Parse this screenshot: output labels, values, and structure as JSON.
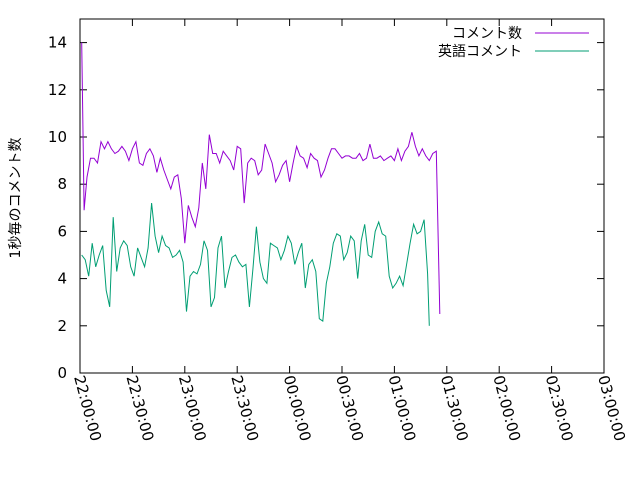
{
  "chart_data": {
    "type": "line",
    "title": "",
    "xlabel": "",
    "ylabel": "1秒毎のコメント数",
    "xlim": [
      "22:00:00",
      "03:00:00"
    ],
    "ylim": [
      0,
      15
    ],
    "x_ticks": [
      "22:00:00",
      "22:30:00",
      "23:00:00",
      "23:30:00",
      "00:00:00",
      "00:30:00",
      "01:00:00",
      "01:30:00",
      "02:00:00",
      "02:30:00",
      "03:00:00"
    ],
    "y_ticks": [
      "0",
      "2",
      "4",
      "6",
      "8",
      "10",
      "12",
      "14"
    ],
    "legend_position": "top-right",
    "grid": false,
    "series": [
      {
        "name": "コメント数",
        "color": "#9400d3",
        "points": [
          [
            "22:01:00",
            14.0
          ],
          [
            "22:01:40",
            10.5
          ],
          [
            "22:02:20",
            6.9
          ],
          [
            "22:04:00",
            8.3
          ],
          [
            "22:06:00",
            9.1
          ],
          [
            "22:08:00",
            9.1
          ],
          [
            "22:10:00",
            8.9
          ],
          [
            "22:12:00",
            9.8
          ],
          [
            "22:14:00",
            9.5
          ],
          [
            "22:16:00",
            9.8
          ],
          [
            "22:18:00",
            9.5
          ],
          [
            "22:20:00",
            9.3
          ],
          [
            "22:22:00",
            9.4
          ],
          [
            "22:24:00",
            9.6
          ],
          [
            "22:26:00",
            9.4
          ],
          [
            "22:28:00",
            9.0
          ],
          [
            "22:30:00",
            9.5
          ],
          [
            "22:32:00",
            9.8
          ],
          [
            "22:34:00",
            8.9
          ],
          [
            "22:36:00",
            8.8
          ],
          [
            "22:38:00",
            9.3
          ],
          [
            "22:40:00",
            9.5
          ],
          [
            "22:42:00",
            9.2
          ],
          [
            "22:44:00",
            8.5
          ],
          [
            "22:46:00",
            9.1
          ],
          [
            "22:48:00",
            8.6
          ],
          [
            "22:50:00",
            8.2
          ],
          [
            "22:52:00",
            7.8
          ],
          [
            "22:54:00",
            8.3
          ],
          [
            "22:56:00",
            8.4
          ],
          [
            "22:58:00",
            7.4
          ],
          [
            "23:00:00",
            5.5
          ],
          [
            "23:02:00",
            7.1
          ],
          [
            "23:04:00",
            6.6
          ],
          [
            "23:06:00",
            6.2
          ],
          [
            "23:08:00",
            7.0
          ],
          [
            "23:10:00",
            8.9
          ],
          [
            "23:12:00",
            7.8
          ],
          [
            "23:14:00",
            10.1
          ],
          [
            "23:16:00",
            9.3
          ],
          [
            "23:18:00",
            9.3
          ],
          [
            "23:20:00",
            8.9
          ],
          [
            "23:22:00",
            9.4
          ],
          [
            "23:24:00",
            9.2
          ],
          [
            "23:26:00",
            9.0
          ],
          [
            "23:28:00",
            8.6
          ],
          [
            "23:30:00",
            9.6
          ],
          [
            "23:32:00",
            9.5
          ],
          [
            "23:34:00",
            7.2
          ],
          [
            "23:36:00",
            8.9
          ],
          [
            "23:38:00",
            9.1
          ],
          [
            "23:40:00",
            9.0
          ],
          [
            "23:42:00",
            8.4
          ],
          [
            "23:44:00",
            8.6
          ],
          [
            "23:46:00",
            9.7
          ],
          [
            "23:48:00",
            9.3
          ],
          [
            "23:50:00",
            8.9
          ],
          [
            "23:52:00",
            8.1
          ],
          [
            "23:54:00",
            8.4
          ],
          [
            "23:56:00",
            8.8
          ],
          [
            "23:58:00",
            9.0
          ],
          [
            "00:00:00",
            8.1
          ],
          [
            "00:02:00",
            8.9
          ],
          [
            "00:04:00",
            9.6
          ],
          [
            "00:06:00",
            9.2
          ],
          [
            "00:08:00",
            9.1
          ],
          [
            "00:10:00",
            8.7
          ],
          [
            "00:12:00",
            9.3
          ],
          [
            "00:14:00",
            9.1
          ],
          [
            "00:16:00",
            9.0
          ],
          [
            "00:18:00",
            8.3
          ],
          [
            "00:20:00",
            8.6
          ],
          [
            "00:22:00",
            9.1
          ],
          [
            "00:24:00",
            9.5
          ],
          [
            "00:26:00",
            9.5
          ],
          [
            "00:28:00",
            9.3
          ],
          [
            "00:30:00",
            9.1
          ],
          [
            "00:32:00",
            9.2
          ],
          [
            "00:34:00",
            9.2
          ],
          [
            "00:36:00",
            9.1
          ],
          [
            "00:38:00",
            9.1
          ],
          [
            "00:40:00",
            9.3
          ],
          [
            "00:42:00",
            9.0
          ],
          [
            "00:44:00",
            9.1
          ],
          [
            "00:46:00",
            9.7
          ],
          [
            "00:48:00",
            9.1
          ],
          [
            "00:50:00",
            9.1
          ],
          [
            "00:52:00",
            9.2
          ],
          [
            "00:54:00",
            9.0
          ],
          [
            "00:56:00",
            9.1
          ],
          [
            "00:58:00",
            9.2
          ],
          [
            "01:00:00",
            9.0
          ],
          [
            "01:02:00",
            9.5
          ],
          [
            "01:04:00",
            9.0
          ],
          [
            "01:06:00",
            9.4
          ],
          [
            "01:08:00",
            9.6
          ],
          [
            "01:10:00",
            10.2
          ],
          [
            "01:12:00",
            9.6
          ],
          [
            "01:14:00",
            9.2
          ],
          [
            "01:16:00",
            9.5
          ],
          [
            "01:18:00",
            9.2
          ],
          [
            "01:20:00",
            9.0
          ],
          [
            "01:22:00",
            9.3
          ],
          [
            "01:24:00",
            9.4
          ],
          [
            "01:26:00",
            2.5
          ]
        ]
      },
      {
        "name": "英語コメント",
        "color": "#009e73",
        "points": [
          [
            "22:01:00",
            5.0
          ],
          [
            "22:02:00",
            4.9
          ],
          [
            "22:03:00",
            4.8
          ],
          [
            "22:05:00",
            4.1
          ],
          [
            "22:07:00",
            5.5
          ],
          [
            "22:09:00",
            4.5
          ],
          [
            "22:11:00",
            5.0
          ],
          [
            "22:13:00",
            5.4
          ],
          [
            "22:15:00",
            3.5
          ],
          [
            "22:17:00",
            2.8
          ],
          [
            "22:19:00",
            6.6
          ],
          [
            "22:21:00",
            4.3
          ],
          [
            "22:23:00",
            5.3
          ],
          [
            "22:25:00",
            5.6
          ],
          [
            "22:27:00",
            5.4
          ],
          [
            "22:29:00",
            4.5
          ],
          [
            "22:31:00",
            4.1
          ],
          [
            "22:33:00",
            5.3
          ],
          [
            "22:35:00",
            4.9
          ],
          [
            "22:37:00",
            4.5
          ],
          [
            "22:39:00",
            5.3
          ],
          [
            "22:41:00",
            7.2
          ],
          [
            "22:43:00",
            5.8
          ],
          [
            "22:45:00",
            5.1
          ],
          [
            "22:47:00",
            5.8
          ],
          [
            "22:49:00",
            5.4
          ],
          [
            "22:51:00",
            5.3
          ],
          [
            "22:53:00",
            4.9
          ],
          [
            "22:55:00",
            5.0
          ],
          [
            "22:57:00",
            5.2
          ],
          [
            "22:59:00",
            4.7
          ],
          [
            "23:01:00",
            2.6
          ],
          [
            "23:03:00",
            4.1
          ],
          [
            "23:05:00",
            4.3
          ],
          [
            "23:07:00",
            4.2
          ],
          [
            "23:09:00",
            4.6
          ],
          [
            "23:11:00",
            5.6
          ],
          [
            "23:13:00",
            5.2
          ],
          [
            "23:15:00",
            2.8
          ],
          [
            "23:17:00",
            3.2
          ],
          [
            "23:19:00",
            5.3
          ],
          [
            "23:21:00",
            5.8
          ],
          [
            "23:23:00",
            3.6
          ],
          [
            "23:25:00",
            4.3
          ],
          [
            "23:27:00",
            4.9
          ],
          [
            "23:29:00",
            5.0
          ],
          [
            "23:31:00",
            4.7
          ],
          [
            "23:33:00",
            4.5
          ],
          [
            "23:35:00",
            4.6
          ],
          [
            "23:37:00",
            2.8
          ],
          [
            "23:39:00",
            4.4
          ],
          [
            "23:41:00",
            6.2
          ],
          [
            "23:43:00",
            4.7
          ],
          [
            "23:45:00",
            4.0
          ],
          [
            "23:47:00",
            3.8
          ],
          [
            "23:49:00",
            5.5
          ],
          [
            "23:51:00",
            5.4
          ],
          [
            "23:53:00",
            5.3
          ],
          [
            "23:55:00",
            4.8
          ],
          [
            "23:57:00",
            5.2
          ],
          [
            "23:59:00",
            5.8
          ],
          [
            "00:01:00",
            5.5
          ],
          [
            "00:03:00",
            4.6
          ],
          [
            "00:05:00",
            5.1
          ],
          [
            "00:07:00",
            5.5
          ],
          [
            "00:09:00",
            3.6
          ],
          [
            "00:11:00",
            4.6
          ],
          [
            "00:13:00",
            4.8
          ],
          [
            "00:15:00",
            4.3
          ],
          [
            "00:17:00",
            2.3
          ],
          [
            "00:19:00",
            2.2
          ],
          [
            "00:21:00",
            3.8
          ],
          [
            "00:23:00",
            4.5
          ],
          [
            "00:25:00",
            5.5
          ],
          [
            "00:27:00",
            5.9
          ],
          [
            "00:29:00",
            5.8
          ],
          [
            "00:31:00",
            4.8
          ],
          [
            "00:33:00",
            5.1
          ],
          [
            "00:35:00",
            5.8
          ],
          [
            "00:37:00",
            5.6
          ],
          [
            "00:39:00",
            4.0
          ],
          [
            "00:41:00",
            5.6
          ],
          [
            "00:43:00",
            6.3
          ],
          [
            "00:45:00",
            5.0
          ],
          [
            "00:47:00",
            4.9
          ],
          [
            "00:49:00",
            6.0
          ],
          [
            "00:51:00",
            6.4
          ],
          [
            "00:53:00",
            5.9
          ],
          [
            "00:55:00",
            5.8
          ],
          [
            "00:57:00",
            4.1
          ],
          [
            "00:59:00",
            3.6
          ],
          [
            "01:01:00",
            3.8
          ],
          [
            "01:03:00",
            4.1
          ],
          [
            "01:05:00",
            3.7
          ],
          [
            "01:07:00",
            4.6
          ],
          [
            "01:09:00",
            5.5
          ],
          [
            "01:11:00",
            6.3
          ],
          [
            "01:13:00",
            5.9
          ],
          [
            "01:15:00",
            6.0
          ],
          [
            "01:17:00",
            6.5
          ],
          [
            "01:19:00",
            4.2
          ],
          [
            "01:20:00",
            2.0
          ]
        ]
      }
    ]
  }
}
